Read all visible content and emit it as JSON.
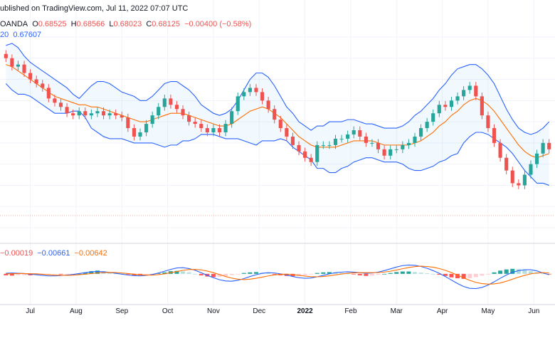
{
  "header": {
    "published": "ublished on TradingView.com, Jul 11, 2022 07:07 UTC",
    "symbol": "OANDA",
    "ohlc": {
      "o_label": "O",
      "o": "0.68525",
      "h_label": "H",
      "h": "0.68566",
      "l_label": "L",
      "l": "0.68023",
      "c_label": "C",
      "c": "0.68125",
      "chg": "−0.00400 (−0.58%)"
    },
    "bb": {
      "label": "20",
      "value": "0.67607"
    },
    "macd": {
      "v1": "−0.00019",
      "v2": "−0.00661",
      "v3": "−0.00642"
    }
  },
  "colors": {
    "bull": "#26a69a",
    "bear": "#ef5350",
    "bb_band": "#2962ff",
    "bb_mid": "#ff6d00",
    "macd_line": "#2962ff",
    "signal_line": "#ff6d00",
    "hist_pos_strong": "#26a69a",
    "hist_pos_weak": "#b2dfdb",
    "hist_neg_strong": "#ff5252",
    "hist_neg_weak": "#ffcdd2",
    "grid": "#f0f3fa",
    "band_fill": "#2196f3"
  },
  "chart_data": [
    {
      "type": "candlestick",
      "title": "",
      "indicator": "Bollinger Bands (20)",
      "x_ticks": [
        "Jul",
        "Aug",
        "Sep",
        "Oct",
        "Nov",
        "Dec",
        "2022",
        "Feb",
        "Mar",
        "Apr",
        "May",
        "Jun"
      ],
      "ylim": [
        0.68,
        0.77
      ],
      "series": {
        "close": [
          0.76,
          0.756,
          0.757,
          0.753,
          0.75,
          0.748,
          0.746,
          0.741,
          0.739,
          0.737,
          0.734,
          0.733,
          0.735,
          0.733,
          0.734,
          0.735,
          0.733,
          0.734,
          0.733,
          0.732,
          0.727,
          0.723,
          0.725,
          0.729,
          0.733,
          0.737,
          0.741,
          0.738,
          0.736,
          0.733,
          0.73,
          0.729,
          0.727,
          0.725,
          0.727,
          0.725,
          0.729,
          0.735,
          0.742,
          0.744,
          0.746,
          0.744,
          0.74,
          0.736,
          0.731,
          0.727,
          0.723,
          0.719,
          0.716,
          0.713,
          0.711,
          0.719,
          0.719,
          0.719,
          0.722,
          0.722,
          0.724,
          0.726,
          0.723,
          0.72,
          0.72,
          0.717,
          0.714,
          0.717,
          0.717,
          0.719,
          0.72,
          0.723,
          0.727,
          0.73,
          0.734,
          0.738,
          0.737,
          0.74,
          0.742,
          0.745,
          0.747,
          0.742,
          0.733,
          0.727,
          0.72,
          0.713,
          0.707,
          0.701,
          0.7,
          0.705,
          0.71,
          0.715,
          0.72,
          0.717
        ],
        "ma20": [
          0.757,
          0.756,
          0.754,
          0.752,
          0.75,
          0.748,
          0.746,
          0.744,
          0.742,
          0.741,
          0.74,
          0.739,
          0.738,
          0.738,
          0.737,
          0.737,
          0.736,
          0.735,
          0.734,
          0.733,
          0.732,
          0.731,
          0.73,
          0.73,
          0.731,
          0.732,
          0.733,
          0.734,
          0.734,
          0.734,
          0.733,
          0.732,
          0.731,
          0.73,
          0.729,
          0.728,
          0.728,
          0.729,
          0.731,
          0.733,
          0.735,
          0.736,
          0.737,
          0.736,
          0.734,
          0.732,
          0.729,
          0.726,
          0.723,
          0.721,
          0.719,
          0.718,
          0.718,
          0.718,
          0.718,
          0.719,
          0.72,
          0.721,
          0.721,
          0.721,
          0.721,
          0.72,
          0.719,
          0.719,
          0.719,
          0.719,
          0.719,
          0.72,
          0.721,
          0.723,
          0.725,
          0.728,
          0.73,
          0.733,
          0.735,
          0.738,
          0.74,
          0.741,
          0.74,
          0.738,
          0.735,
          0.731,
          0.727,
          0.723,
          0.719,
          0.716,
          0.714,
          0.713,
          0.714,
          0.715
        ],
        "upper": [
          0.766,
          0.767,
          0.765,
          0.761,
          0.758,
          0.756,
          0.754,
          0.752,
          0.75,
          0.748,
          0.746,
          0.743,
          0.741,
          0.744,
          0.747,
          0.749,
          0.749,
          0.748,
          0.746,
          0.744,
          0.743,
          0.742,
          0.74,
          0.74,
          0.742,
          0.745,
          0.748,
          0.749,
          0.749,
          0.747,
          0.745,
          0.742,
          0.738,
          0.736,
          0.734,
          0.733,
          0.734,
          0.736,
          0.74,
          0.745,
          0.75,
          0.753,
          0.753,
          0.751,
          0.747,
          0.742,
          0.737,
          0.734,
          0.73,
          0.728,
          0.726,
          0.728,
          0.728,
          0.73,
          0.73,
          0.73,
          0.731,
          0.731,
          0.73,
          0.729,
          0.729,
          0.728,
          0.727,
          0.727,
          0.727,
          0.728,
          0.73,
          0.733,
          0.735,
          0.738,
          0.741,
          0.745,
          0.748,
          0.752,
          0.755,
          0.756,
          0.757,
          0.757,
          0.755,
          0.752,
          0.748,
          0.742,
          0.736,
          0.731,
          0.727,
          0.725,
          0.724,
          0.725,
          0.727,
          0.73
        ],
        "lower": [
          0.748,
          0.745,
          0.743,
          0.743,
          0.742,
          0.74,
          0.738,
          0.736,
          0.734,
          0.734,
          0.734,
          0.735,
          0.735,
          0.732,
          0.727,
          0.725,
          0.723,
          0.722,
          0.722,
          0.722,
          0.721,
          0.72,
          0.72,
          0.72,
          0.72,
          0.719,
          0.718,
          0.719,
          0.719,
          0.721,
          0.721,
          0.722,
          0.724,
          0.724,
          0.724,
          0.723,
          0.722,
          0.722,
          0.722,
          0.721,
          0.72,
          0.719,
          0.721,
          0.721,
          0.721,
          0.722,
          0.721,
          0.718,
          0.716,
          0.714,
          0.712,
          0.708,
          0.708,
          0.706,
          0.706,
          0.708,
          0.709,
          0.711,
          0.712,
          0.713,
          0.713,
          0.712,
          0.711,
          0.711,
          0.711,
          0.71,
          0.708,
          0.707,
          0.707,
          0.708,
          0.709,
          0.711,
          0.712,
          0.714,
          0.715,
          0.72,
          0.723,
          0.725,
          0.725,
          0.724,
          0.722,
          0.72,
          0.718,
          0.715,
          0.711,
          0.707,
          0.704,
          0.701,
          0.701,
          0.7
        ]
      }
    },
    {
      "type": "bar",
      "title": "",
      "indicator": "MACD",
      "ylim": [
        -0.016,
        0.012
      ],
      "histogram": [
        -0.001,
        -0.0012,
        -0.0009,
        -0.0008,
        -0.001,
        -0.0007,
        -0.0005,
        -0.0003,
        -0.0002,
        -0.0004,
        -0.0003,
        -0.0002,
        0.0,
        0.001,
        0.0018,
        0.0022,
        0.0018,
        0.0012,
        0.0006,
        0.0002,
        -0.0004,
        -0.001,
        -0.001,
        -0.0006,
        -0.0002,
        0.0004,
        0.001,
        0.0018,
        0.002,
        0.0017,
        0.001,
        0.0,
        -0.001,
        -0.0018,
        -0.0022,
        -0.002,
        -0.0015,
        -0.0008,
        -0.0002,
        0.0006,
        0.001,
        0.0012,
        0.0008,
        0.0004,
        -0.0004,
        -0.001,
        -0.0014,
        -0.0016,
        -0.0014,
        -0.0008,
        -0.0002,
        0.0006,
        0.001,
        0.0012,
        0.001,
        0.0006,
        0.0002,
        -0.0004,
        -0.001,
        -0.0014,
        -0.0012,
        -0.0006,
        0.0,
        0.0006,
        0.0012,
        0.0016,
        0.0016,
        0.0012,
        0.0008,
        0.0004,
        0.0,
        -0.0006,
        -0.0014,
        -0.0024,
        -0.003,
        -0.0034,
        -0.003,
        -0.0022,
        -0.0012,
        -0.0002,
        0.001,
        0.0022,
        0.003,
        0.0034,
        0.0032,
        0.0026,
        0.0018,
        0.001,
        0.0004,
        -0.0002
      ],
      "macd": [
        0.0004,
        0.0006,
        0.0004,
        0.0002,
        -0.0002,
        -0.0006,
        -0.001,
        -0.0014,
        -0.0014,
        -0.0012,
        -0.0008,
        -0.0004,
        0.0002,
        0.0008,
        0.0014,
        0.0016,
        0.0014,
        0.001,
        0.0004,
        -0.0002,
        -0.0008,
        -0.0012,
        -0.0014,
        -0.001,
        -0.0004,
        0.0006,
        0.0018,
        0.003,
        0.004,
        0.0042,
        0.0036,
        0.0024,
        0.0008,
        -0.001,
        -0.0026,
        -0.004,
        -0.0048,
        -0.005,
        -0.0044,
        -0.0032,
        -0.0018,
        -0.0006,
        0.0004,
        0.0008,
        0.0006,
        0.0,
        -0.0008,
        -0.0018,
        -0.0026,
        -0.003,
        -0.0028,
        -0.002,
        -0.001,
        0.0,
        0.0008,
        0.0012,
        0.0014,
        0.0012,
        0.0008,
        0.0004,
        0.0006,
        0.0012,
        0.0022,
        0.0034,
        0.0046,
        0.0056,
        0.006,
        0.0058,
        0.005,
        0.0038,
        0.0022,
        0.0004,
        -0.0018,
        -0.0042,
        -0.0066,
        -0.0086,
        -0.0098,
        -0.01,
        -0.0092,
        -0.0076,
        -0.0054,
        -0.003,
        -0.0008,
        0.001,
        0.0022,
        0.0028,
        0.0028,
        0.002,
        0.0006,
        -0.0006
      ],
      "signal": [
        0.0,
        0.0001,
        0.0002,
        0.0002,
        0.0001,
        0.0,
        -0.0003,
        -0.0006,
        -0.0009,
        -0.001,
        -0.001,
        -0.0009,
        -0.0006,
        -0.0002,
        0.0002,
        0.0006,
        0.0009,
        0.001,
        0.0009,
        0.0006,
        0.0002,
        -0.0002,
        -0.0006,
        -0.0008,
        -0.0008,
        -0.0005,
        0.0,
        0.0008,
        0.0016,
        0.0024,
        0.0029,
        0.003,
        0.0027,
        0.0019,
        0.0008,
        -0.0005,
        -0.0018,
        -0.0029,
        -0.0036,
        -0.0039,
        -0.0036,
        -0.003,
        -0.0022,
        -0.0014,
        -0.0007,
        -0.0003,
        -0.0002,
        -0.0005,
        -0.001,
        -0.0015,
        -0.0019,
        -0.002,
        -0.0018,
        -0.0013,
        -0.0007,
        -0.0001,
        0.0004,
        0.0007,
        0.0008,
        0.0008,
        0.0008,
        0.0009,
        0.0012,
        0.0018,
        0.0026,
        0.0035,
        0.0043,
        0.0049,
        0.0052,
        0.005,
        0.0045,
        0.0036,
        0.0024,
        0.0009,
        -0.0009,
        -0.0027,
        -0.0044,
        -0.0058,
        -0.0066,
        -0.007,
        -0.0068,
        -0.0062,
        -0.005,
        -0.0036,
        -0.0022,
        -0.001,
        0.0,
        0.0006,
        0.0008,
        0.0006
      ]
    }
  ]
}
